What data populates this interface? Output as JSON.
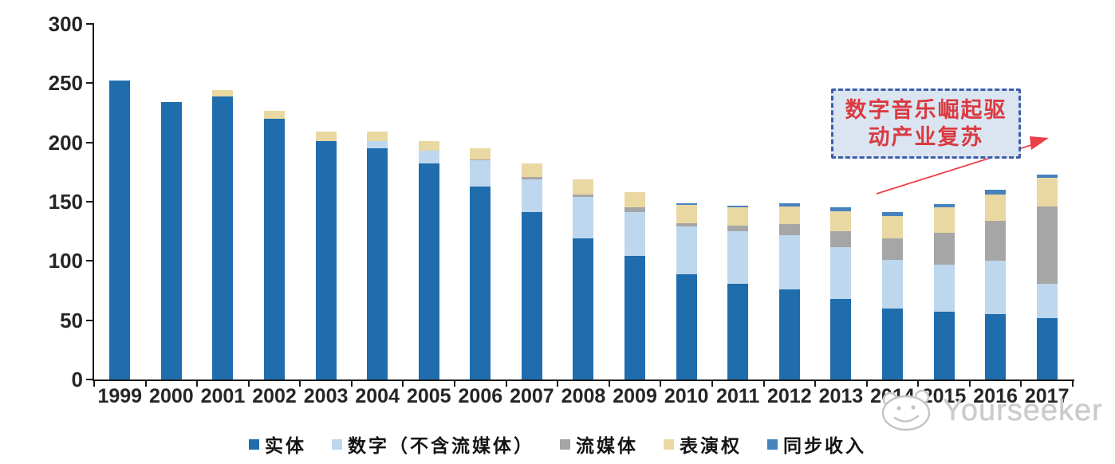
{
  "chart_data": {
    "type": "bar",
    "stacked": true,
    "categories": [
      "1999",
      "2000",
      "2001",
      "2002",
      "2003",
      "2004",
      "2005",
      "2006",
      "2007",
      "2008",
      "2009",
      "2010",
      "2011",
      "2012",
      "2013",
      "2014",
      "2015",
      "2016",
      "2017"
    ],
    "series": [
      {
        "id": "physical",
        "name": "实体",
        "color": "#1F6DAD",
        "values": [
          252,
          234,
          239,
          220,
          201,
          195,
          182,
          163,
          141,
          119,
          104,
          89,
          81,
          76,
          68,
          60,
          57,
          55,
          52
        ]
      },
      {
        "id": "digital-excl-streaming",
        "name": "数字（不含流媒体）",
        "color": "#BDD7EE",
        "values": [
          0,
          0,
          0,
          0,
          0,
          6,
          11,
          22,
          28,
          35,
          37,
          40,
          44,
          46,
          44,
          41,
          40,
          45,
          29
        ]
      },
      {
        "id": "streaming",
        "name": "流媒体",
        "color": "#A6A6A6",
        "values": [
          0,
          0,
          0,
          0,
          0,
          0,
          0,
          1,
          2,
          2,
          4,
          3,
          5,
          9,
          13,
          18,
          27,
          34,
          65
        ]
      },
      {
        "id": "performance-rights",
        "name": "表演权",
        "color": "#E9D8A1",
        "values": [
          0,
          0,
          5,
          7,
          8,
          8,
          8,
          9,
          11,
          13,
          13,
          15,
          15,
          15,
          17,
          19,
          21,
          22,
          24
        ]
      },
      {
        "id": "sync-revenue",
        "name": "同步收入",
        "color": "#4683BE",
        "values": [
          0,
          0,
          0,
          0,
          0,
          0,
          0,
          0,
          0,
          0,
          0,
          2,
          2,
          3,
          3,
          3,
          3,
          4,
          3
        ]
      }
    ],
    "ylim": [
      0,
      300
    ],
    "yticks": [
      0,
      50,
      100,
      150,
      200,
      250,
      300
    ],
    "grid": false,
    "legend_position": "bottom"
  },
  "annotation": {
    "line1": "数字音乐崛起驱",
    "line2": "动产业复苏",
    "border_color": "#3F5EA7",
    "fill_color": "#DBE5F2",
    "text_color": "#D93A40",
    "arrow_color": "#ED3F47"
  },
  "watermark": {
    "text": "Yourseeker",
    "logo": "hippo-face-icon",
    "color": "#CBCBCB"
  }
}
